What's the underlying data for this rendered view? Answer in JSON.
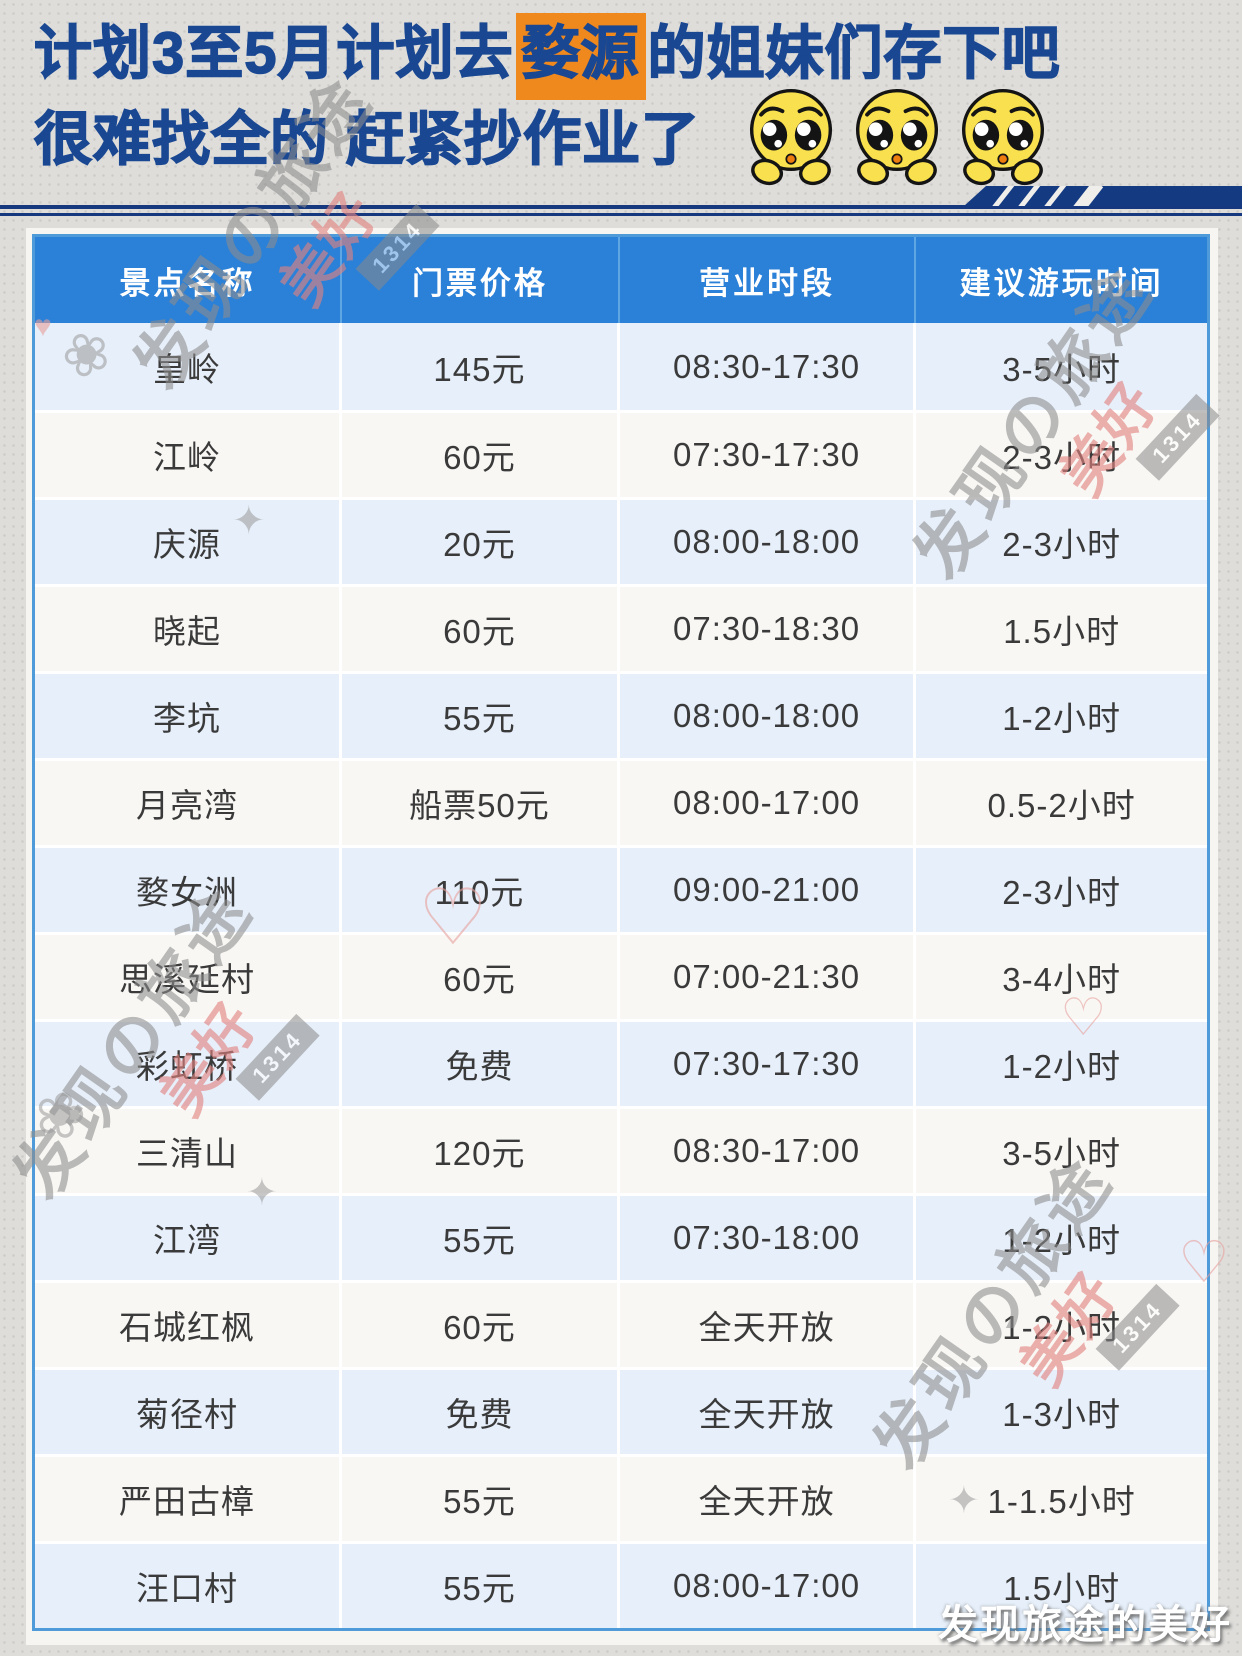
{
  "title": {
    "line1_pre": "计划3至5月计划去",
    "line1_highlight": "婺源",
    "line1_post": "的姐妹们存下吧",
    "line2": "很难找全的 赶紧抄作业了",
    "emojis": [
      "pleading-face",
      "pleading-face",
      "pleading-face"
    ]
  },
  "table": {
    "headers": [
      "景点名称",
      "门票价格",
      "营业时段",
      "建议游玩时间"
    ],
    "rows": [
      {
        "name": "皇岭",
        "price": "145元",
        "hours": "08:30-17:30",
        "duration": "3-5小时"
      },
      {
        "name": "江岭",
        "price": "60元",
        "hours": "07:30-17:30",
        "duration": "2-3小时"
      },
      {
        "name": "庆源",
        "price": "20元",
        "hours": "08:00-18:00",
        "duration": "2-3小时"
      },
      {
        "name": "晓起",
        "price": "60元",
        "hours": "07:30-18:30",
        "duration": "1.5小时"
      },
      {
        "name": "李坑",
        "price": "55元",
        "hours": "08:00-18:00",
        "duration": "1-2小时"
      },
      {
        "name": "月亮湾",
        "price": "船票50元",
        "hours": "08:00-17:00",
        "duration": "0.5-2小时"
      },
      {
        "name": "婺女洲",
        "price": "110元",
        "hours": "09:00-21:00",
        "duration": "2-3小时"
      },
      {
        "name": "思溪延村",
        "price": "60元",
        "hours": "07:00-21:30",
        "duration": "3-4小时"
      },
      {
        "name": "彩虹桥",
        "price": "免费",
        "hours": "07:30-17:30",
        "duration": "1-2小时"
      },
      {
        "name": "三清山",
        "price": "120元",
        "hours": "08:30-17:00",
        "duration": "3-5小时"
      },
      {
        "name": "江湾",
        "price": "55元",
        "hours": "07:30-18:00",
        "duration": "1-2小时"
      },
      {
        "name": "石城红枫",
        "price": "60元",
        "hours": "全天开放",
        "duration": "1-2小时"
      },
      {
        "name": "菊径村",
        "price": "免费",
        "hours": "全天开放",
        "duration": "1-3小时"
      },
      {
        "name": "严田古樟",
        "price": "55元",
        "hours": "全天开放",
        "duration": "1-1.5小时"
      },
      {
        "name": "汪口村",
        "price": "55元",
        "hours": "08:00-17:00",
        "duration": "1.5小时"
      }
    ]
  },
  "watermark": {
    "diagonal_text": "发现の旅途",
    "accent_text": "美好",
    "badge": "1314",
    "footer": "发现旅途的美好"
  },
  "colors": {
    "title_navy": "#1a4792",
    "highlight_orange": "#f0891d",
    "header_blue": "#2b80d7",
    "row_light_blue": "#e6effa",
    "row_white": "#f8f7f4",
    "table_border": "#4f9ad8",
    "divider_navy": "#16387f",
    "background_gray": "#deddda",
    "emoji_yellow": "#f9e04e",
    "emoji_mouth_orange": "#ed7d0e"
  }
}
